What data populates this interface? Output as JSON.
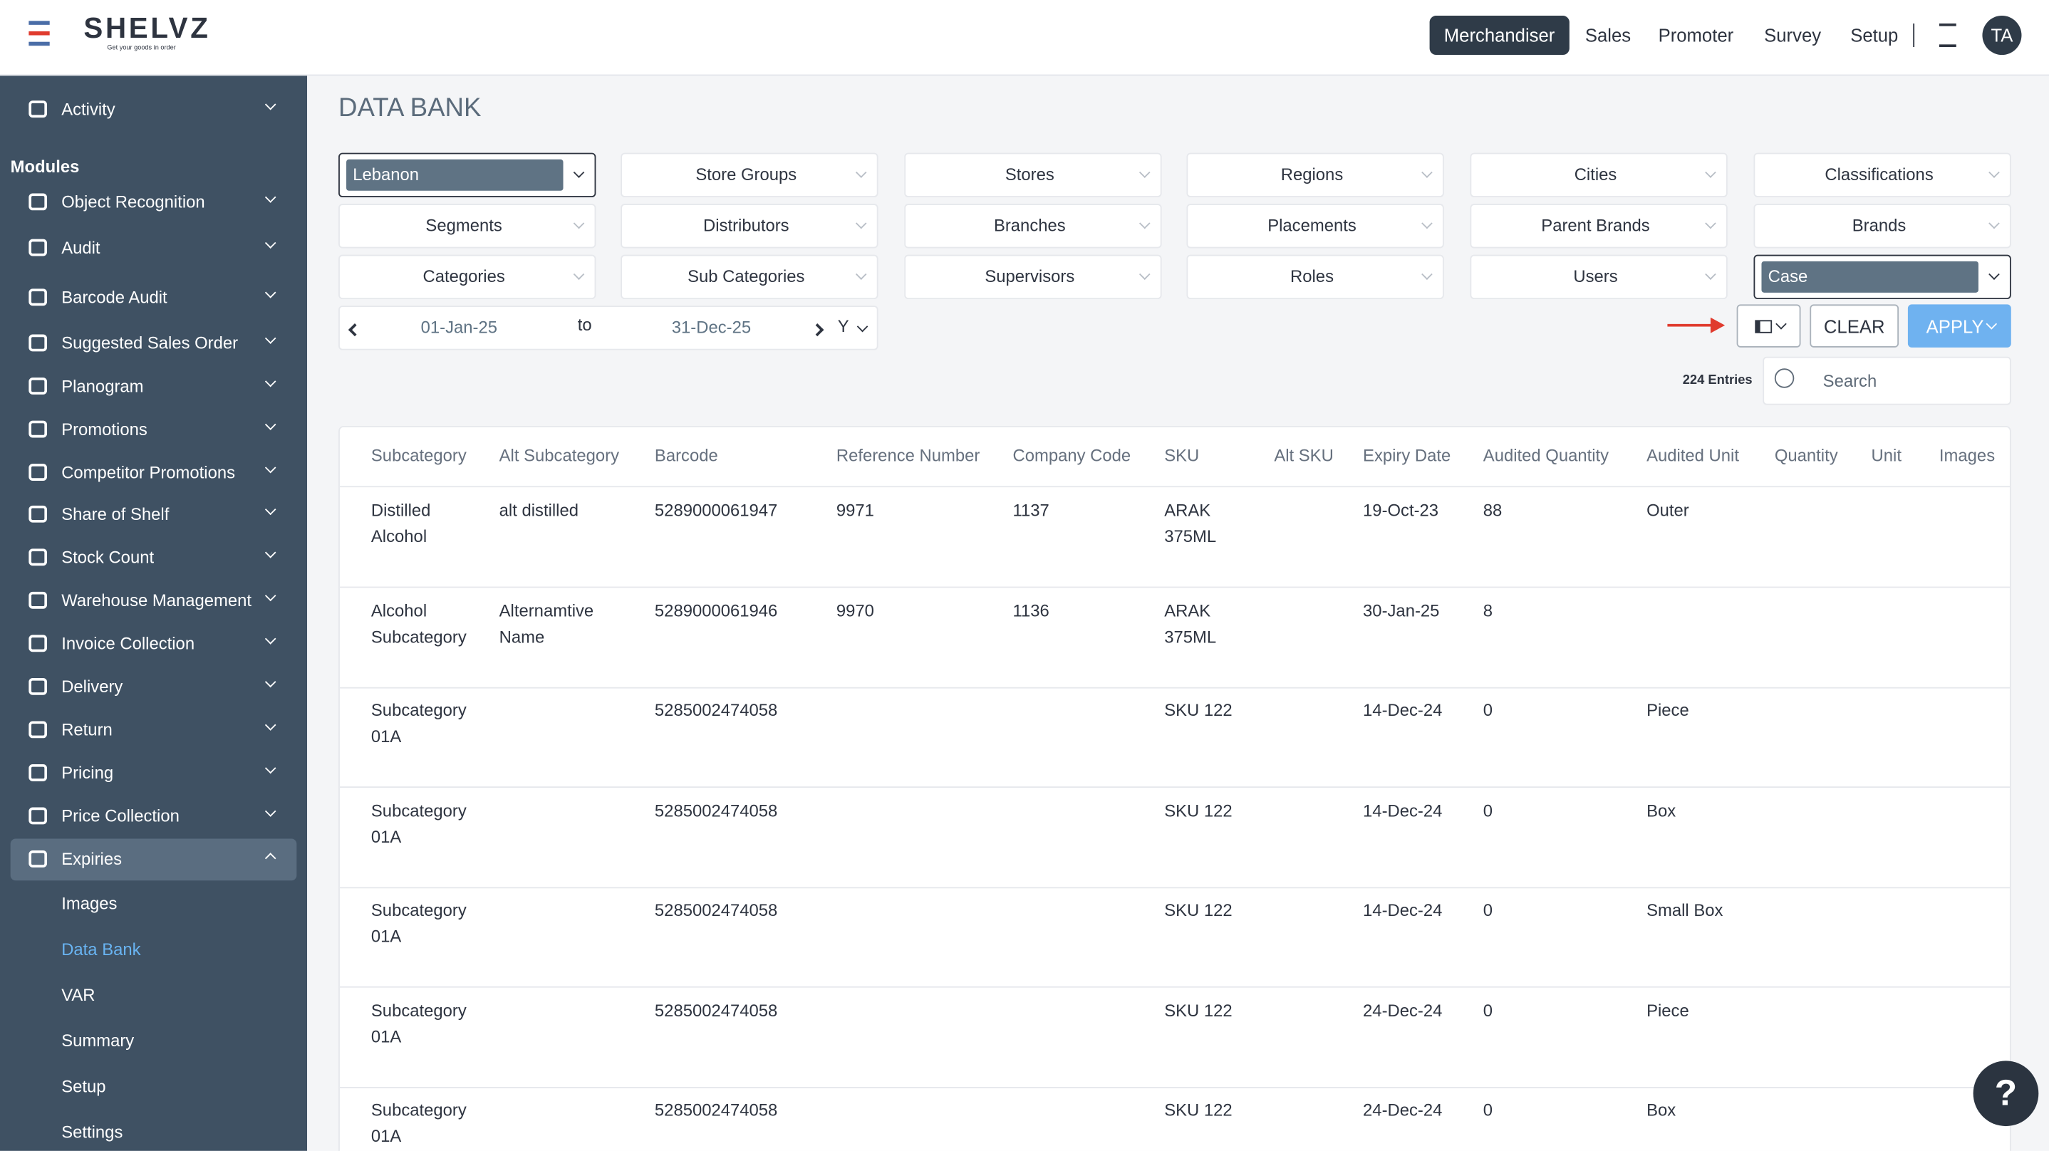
{
  "header": {
    "logo": "SHELVZ",
    "tagline": "Get your goods in order",
    "nav": [
      "Merchandiser",
      "Sales",
      "Promoter",
      "Survey",
      "Setup"
    ],
    "avatar": "TA"
  },
  "sidebar": {
    "top": "Activity",
    "section": "Modules",
    "items": [
      "Object Recognition",
      "Audit",
      "Barcode Audit",
      "Suggested Sales Order",
      "Planogram",
      "Promotions",
      "Competitor Promotions",
      "Share of Shelf",
      "Stock Count",
      "Warehouse Management",
      "Invoice Collection",
      "Delivery",
      "Return",
      "Pricing",
      "Price Collection",
      "Expiries"
    ],
    "subitems": [
      "Images",
      "Data Bank",
      "VAR",
      "Summary",
      "Setup",
      "Settings"
    ]
  },
  "page": {
    "title": "DATA BANK",
    "filters": [
      [
        "Lebanon",
        "Store Groups",
        "Stores",
        "Regions",
        "Cities",
        "Classifications"
      ],
      [
        "Segments",
        "Distributors",
        "Branches",
        "Placements",
        "Parent Brands",
        "Brands"
      ],
      [
        "Categories",
        "Sub Categories",
        "Supervisors",
        "Roles",
        "Users",
        "Case"
      ]
    ],
    "date_from": "01-Jan-25",
    "date_sep": "to",
    "date_to": "31-Dec-25",
    "period": "Y",
    "clear": "CLEAR",
    "apply": "APPLY",
    "entries": "224 Entries",
    "search": "Search",
    "help": "?"
  },
  "table": {
    "columns": [
      "Subcategory",
      "Alt Subcategory",
      "Barcode",
      "Reference Number",
      "Company Code",
      "SKU",
      "Alt SKU",
      "Expiry Date",
      "Audited Quantity",
      "Audited Unit",
      "Quantity",
      "Unit",
      "Images"
    ],
    "rows": [
      [
        "Distilled Alcohol",
        "alt distilled",
        "5289000061947",
        "9971",
        "1137",
        "ARAK 375ML",
        null,
        "19-Oct-23",
        "88",
        "Outer",
        null,
        null,
        null
      ],
      [
        "Alcohol Subcategory",
        "Alternamtive Name",
        "5289000061946",
        "9970",
        "1136",
        "ARAK 375ML",
        null,
        "30-Jan-25",
        "8",
        null,
        null,
        null,
        null
      ],
      [
        "Subcategory 01A",
        null,
        "5285002474058",
        null,
        null,
        "SKU 122",
        null,
        "14-Dec-24",
        "0",
        "Piece",
        null,
        null,
        null
      ],
      [
        "Subcategory 01A",
        null,
        "5285002474058",
        null,
        null,
        "SKU 122",
        null,
        "14-Dec-24",
        "0",
        "Box",
        null,
        null,
        null
      ],
      [
        "Subcategory 01A",
        null,
        "5285002474058",
        null,
        null,
        "SKU 122",
        null,
        "14-Dec-24",
        "0",
        "Small Box",
        null,
        null,
        null
      ],
      [
        "Subcategory 01A",
        null,
        "5285002474058",
        null,
        null,
        "SKU 122",
        null,
        "24-Dec-24",
        "0",
        "Piece",
        null,
        null,
        null
      ],
      [
        "Subcategory 01A",
        null,
        "5285002474058",
        null,
        null,
        "SKU 122",
        null,
        "24-Dec-24",
        "0",
        "Box",
        null,
        null,
        null
      ]
    ]
  }
}
